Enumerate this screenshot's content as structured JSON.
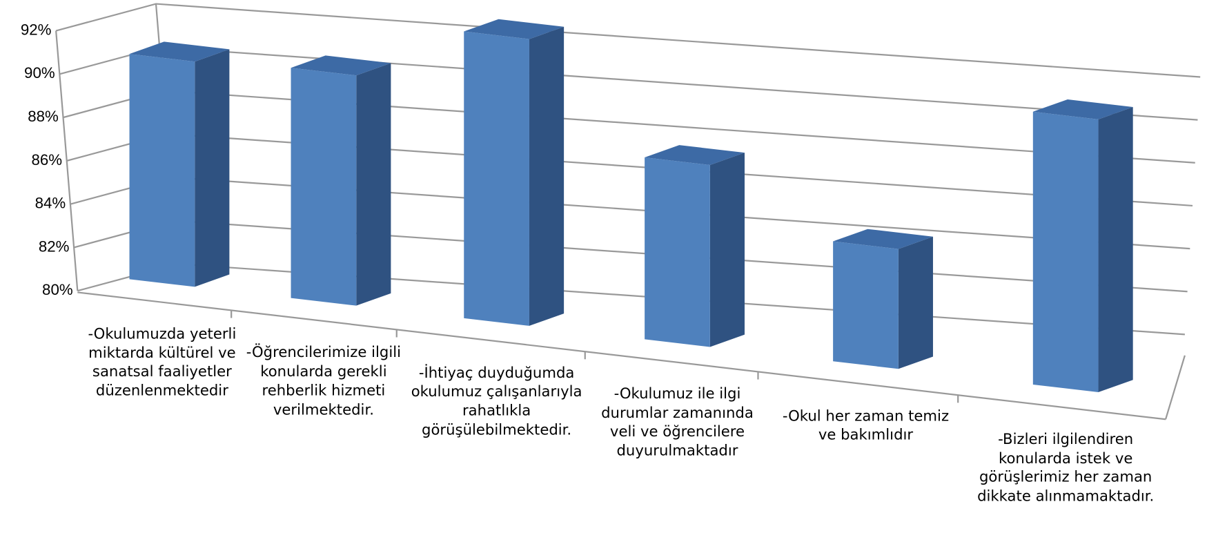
{
  "chart_data": {
    "type": "bar3d",
    "categories": [
      "-Okulumuzda yeterli miktarda kültürel ve sanatsal faaliyetler düzenlenmektedir",
      "-Öğrencilerimize ilgili konularda gerekli rehberlik hizmeti verilmektedir.",
      "-İhtiyaç duyduğumda okulumuz çalışanlarıyla rahatlıkla görüşülebilmektedir.",
      "-Okulumuz ile ilgi durumlar zamanında veli ve öğrencilere duyurulmaktadır",
      "-Okul her zaman temiz ve bakımlıdır",
      "-Bizleri ilgilendiren konularda istek ve görüşlerimiz her zaman dikkate alınmamaktadır."
    ],
    "values": [
      90,
      89.5,
      91,
      86.5,
      84,
      88.5
    ],
    "color": "#4f81bd",
    "ylim": [
      80,
      92
    ],
    "yticks": [
      {
        "value": 80,
        "label": "80%"
      },
      {
        "value": 82,
        "label": "82%"
      },
      {
        "value": 84,
        "label": "84%"
      },
      {
        "value": 86,
        "label": "86%"
      },
      {
        "value": 88,
        "label": "88%"
      },
      {
        "value": 90,
        "label": "90%"
      },
      {
        "value": 92,
        "label": "92%"
      }
    ],
    "grid": true
  }
}
